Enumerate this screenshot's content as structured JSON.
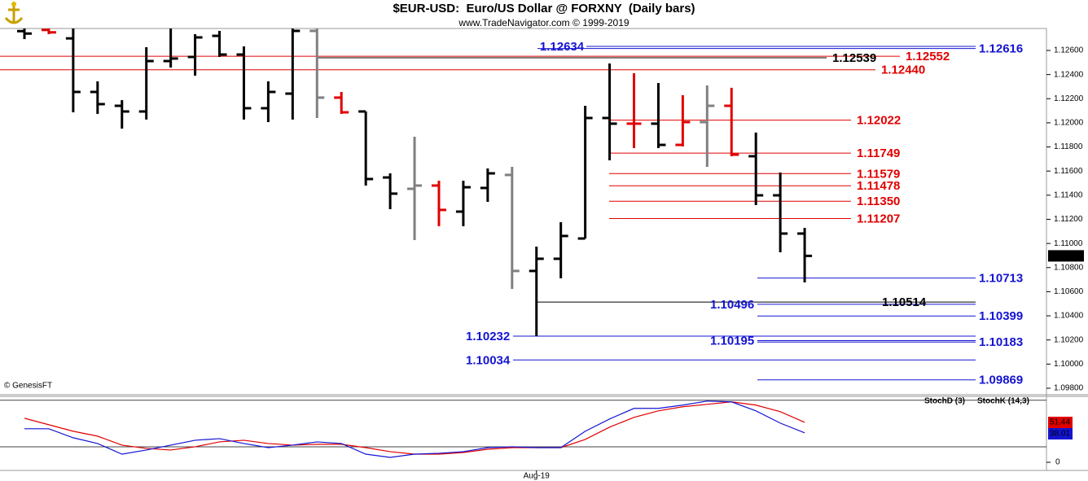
{
  "chart_data": [
    {
      "type": "ohlc",
      "title": "$EUR-USD:  Euro/US Dollar @ FORXNY  (Daily bars)",
      "subtitle": "www.TradeNavigator.com © 1999-2019",
      "source": "© GenesisFT",
      "categories": [
        null,
        null,
        null,
        null,
        null,
        null,
        null,
        null,
        null,
        null,
        null,
        null,
        null,
        null,
        null,
        null,
        null,
        null,
        null,
        null,
        null,
        "Aug-19",
        null,
        null,
        null,
        null,
        null,
        null,
        null,
        null,
        null,
        null,
        null
      ],
      "open": [
        1.1276,
        1.1277,
        1.127,
        1.12256,
        1.12141,
        1.12094,
        1.12512,
        1.12546,
        1.12721,
        1.12566,
        1.12121,
        1.12242,
        1.12762,
        1.12209,
        1.12094,
        1.11547,
        1.11453,
        1.1148,
        1.11264,
        1.1146,
        1.11568,
        1.10772,
        1.10873,
        1.11041,
        1.1204,
        1.11993,
        1.11993,
        1.11817,
        1.12006,
        1.12141,
        1.11723,
        1.11399,
        1.11082
      ],
      "high": [
        1.1282,
        1.1282,
        1.1282,
        1.12344,
        1.12188,
        1.12627,
        1.1282,
        1.12735,
        1.12762,
        1.12634,
        1.12344,
        1.1282,
        1.1282,
        1.12256,
        1.12094,
        1.11581,
        1.11885,
        1.1152,
        1.1152,
        1.11622,
        1.11635,
        1.10974,
        1.11176,
        1.12141,
        1.12492,
        1.12411,
        1.1233,
        1.12229,
        1.1231,
        1.1229,
        1.11919,
        1.11588,
        1.11129
      ],
      "low": [
        1.12694,
        1.12735,
        1.12087,
        1.12074,
        1.11952,
        1.12027,
        1.12458,
        1.12391,
        1.12546,
        1.12027,
        1.12006,
        1.12027,
        1.1204,
        1.12074,
        1.1148,
        1.11284,
        1.11028,
        1.11143,
        1.11143,
        1.11345,
        1.10623,
        1.10232,
        1.10711,
        1.11041,
        1.11689,
        1.1179,
        1.1179,
        1.11804,
        1.11635,
        1.11723,
        1.11318,
        1.10927,
        1.10677
      ],
      "close": [
        1.1274,
        1.1275,
        1.12256,
        1.12155,
        1.12094,
        1.12512,
        1.12533,
        1.12708,
        1.12566,
        1.12121,
        1.12256,
        1.12762,
        1.12209,
        1.12087,
        1.11534,
        1.11413,
        1.1148,
        1.11278,
        1.11466,
        1.11581,
        1.10772,
        1.10873,
        1.11062,
        1.1204,
        1.11993,
        1.11993,
        1.11817,
        1.12006,
        1.12141,
        1.11736,
        1.11399,
        1.11082,
        1.10897
      ],
      "colors": [
        "#000000",
        "#e00000",
        "#000000",
        "#000000",
        "#000000",
        "#000000",
        "#000000",
        "#000000",
        "#000000",
        "#000000",
        "#000000",
        "#000000",
        "#808080",
        "#e00000",
        "#000000",
        "#000000",
        "#808080",
        "#e00000",
        "#000000",
        "#000000",
        "#808080",
        "#000000",
        "#000000",
        "#000000",
        "#000000",
        "#e00000",
        "#000000",
        "#e00000",
        "#808080",
        "#e00000",
        "#000000",
        "#000000",
        "#000000"
      ],
      "ylim": [
        1.0975,
        1.1278
      ],
      "yticks": [
        {
          "value": 1.098,
          "label": "1.09800"
        },
        {
          "value": 1.1,
          "label": "1.10000"
        },
        {
          "value": 1.102,
          "label": "1.10200"
        },
        {
          "value": 1.104,
          "label": "1.10400"
        },
        {
          "value": 1.106,
          "label": "1.10600"
        },
        {
          "value": 1.108,
          "label": "1.10800"
        },
        {
          "value": 1.11,
          "label": "1.11000"
        },
        {
          "value": 1.112,
          "label": "1.11200"
        },
        {
          "value": 1.114,
          "label": "1.11400"
        },
        {
          "value": 1.116,
          "label": "1.11600"
        },
        {
          "value": 1.118,
          "label": "1.11800"
        },
        {
          "value": 1.12,
          "label": "1.12000"
        },
        {
          "value": 1.122,
          "label": "1.12200"
        },
        {
          "value": 1.124,
          "label": "1.12400"
        },
        {
          "value": 1.126,
          "label": "1.12600"
        }
      ],
      "levels": [
        {
          "value": 1.12634,
          "label": "1.12634",
          "color": "#1414d2"
        },
        {
          "value": 1.12616,
          "label": "1.12616",
          "color": "#1414d2"
        },
        {
          "value": 1.12539,
          "label": "1.12539",
          "color": "#000000"
        },
        {
          "value": 1.12552,
          "label": "1.12552",
          "color": "#e00000"
        },
        {
          "value": 1.1244,
          "label": "1.12440",
          "color": "#e00000"
        },
        {
          "value": 1.12022,
          "label": "1.12022",
          "color": "#e00000"
        },
        {
          "value": 1.11749,
          "label": "1.11749",
          "color": "#e00000"
        },
        {
          "value": 1.11579,
          "label": "1.11579",
          "color": "#e00000"
        },
        {
          "value": 1.11478,
          "label": "1.11478",
          "color": "#e00000"
        },
        {
          "value": 1.1135,
          "label": "1.11350",
          "color": "#e00000"
        },
        {
          "value": 1.11207,
          "label": "1.11207",
          "color": "#e00000"
        },
        {
          "value": 1.10713,
          "label": "1.10713",
          "color": "#1414d2"
        },
        {
          "value": 1.10514,
          "label": "1.10514",
          "color": "#000000"
        },
        {
          "value": 1.10496,
          "label": "1.10496",
          "color": "#1414d2"
        },
        {
          "value": 1.10399,
          "label": "1.10399",
          "color": "#1414d2"
        },
        {
          "value": 1.10232,
          "label": "1.10232",
          "color": "#1414d2"
        },
        {
          "value": 1.10195,
          "label": "1.10195",
          "color": "#1414d2"
        },
        {
          "value": 1.10183,
          "label": "1.10183",
          "color": "#1414d2"
        },
        {
          "value": 1.10034,
          "label": "1.10034",
          "color": "#1414d2"
        },
        {
          "value": 1.09869,
          "label": "1.09869",
          "color": "#1414d2"
        }
      ]
    },
    {
      "type": "line",
      "series": [
        {
          "name": "StochD (3)",
          "color": "#e00000",
          "values": [
            56.8,
            48.4,
            40,
            33.7,
            22.1,
            17.9,
            15.8,
            20,
            26.3,
            28.4,
            24.2,
            22.1,
            23.2,
            23.2,
            18.9,
            13.7,
            10.5,
            10.5,
            12.6,
            16.8,
            18.9,
            18.9,
            18.9,
            29.5,
            45.3,
            57.9,
            66.3,
            71.6,
            74.7,
            77.9,
            73.7,
            65.3,
            51.44
          ]
        },
        {
          "name": "StochK (14,3)",
          "color": "#1414d2",
          "values": [
            43.2,
            43.2,
            31.6,
            24.2,
            10.5,
            15.8,
            22.1,
            28.4,
            30.5,
            24.2,
            18.9,
            22.1,
            26.3,
            24.2,
            10.5,
            6.3,
            10.5,
            11.6,
            13.7,
            18.9,
            20,
            18.9,
            18.9,
            40,
            55.8,
            69.5,
            69.5,
            73.7,
            78.9,
            77.9,
            66.3,
            50.5,
            38.01
          ]
        }
      ],
      "ylim": [
        0,
        85
      ],
      "yticks": [
        0
      ],
      "hlines": [
        20,
        80
      ]
    }
  ]
}
